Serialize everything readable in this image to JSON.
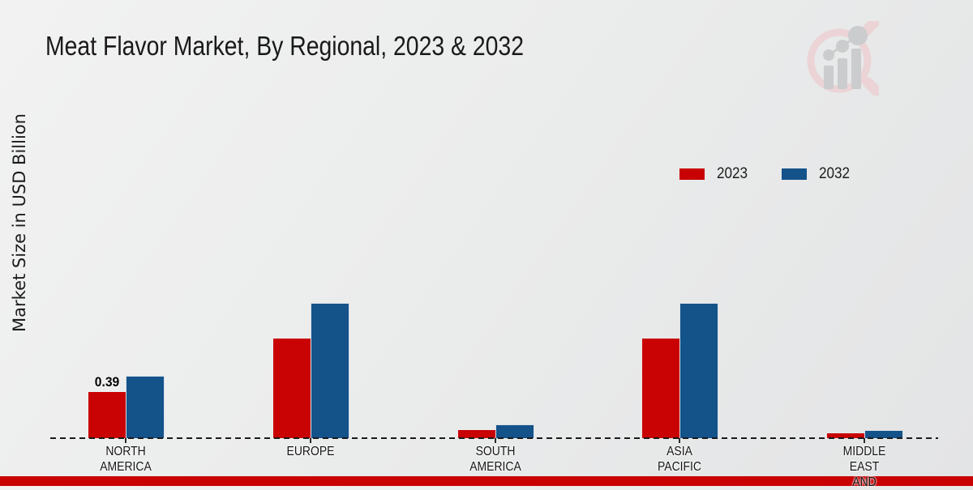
{
  "header": {
    "title": "Meat Flavor Market, By Regional, 2023 & 2032"
  },
  "y_axis": {
    "label": "Market Size in USD Billion"
  },
  "legend": {
    "items": [
      {
        "label": "2023",
        "color": "#C90204"
      },
      {
        "label": "2032",
        "color": "#14528A"
      }
    ]
  },
  "footer": {
    "bar_color": "#C90204"
  },
  "logo": {
    "name": "market-research-magnifier-watermark"
  },
  "chart_data": {
    "type": "bar",
    "title": "Meat Flavor Market, By Regional, 2023 & 2032",
    "xlabel": "",
    "ylabel": "Market Size in USD Billion",
    "categories": [
      "NORTH AMERICA",
      "EUROPE",
      "SOUTH AMERICA",
      "ASIA PACIFIC",
      "MIDDLE EAST AND"
    ],
    "category_lines": [
      [
        "NORTH",
        "AMERICA"
      ],
      [
        "EUROPE"
      ],
      [
        "SOUTH",
        "AMERICA"
      ],
      [
        "ASIA",
        "PACIFIC"
      ],
      [
        "MIDDLE",
        "EAST",
        "AND"
      ]
    ],
    "series": [
      {
        "name": "2023",
        "color": "#C90204",
        "values": [
          0.39,
          0.84,
          0.07,
          0.84,
          0.04
        ],
        "data_labels": [
          "0.39",
          null,
          null,
          null,
          null
        ]
      },
      {
        "name": "2032",
        "color": "#14528A",
        "values": [
          0.52,
          1.14,
          0.11,
          1.14,
          0.06
        ],
        "data_labels": [
          null,
          null,
          null,
          null,
          null
        ]
      }
    ],
    "ylim": [
      0,
      1.25
    ],
    "grid": false,
    "baseline_style": "dashed",
    "legend_position": "upper-right"
  }
}
